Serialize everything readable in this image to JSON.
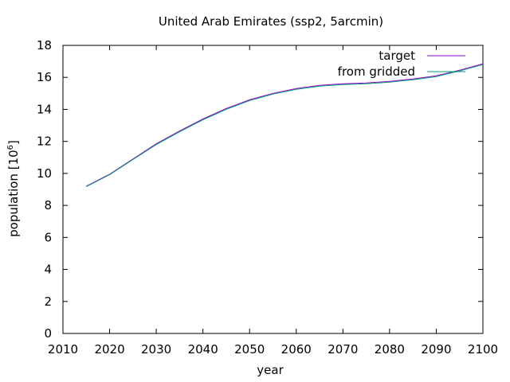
{
  "chart_data": {
    "type": "line",
    "title": "United Arab Emirates (ssp2, 5arcmin)",
    "xlabel": "year",
    "ylabel": "population [10",
    "ylabel_exp": "6",
    "ylabel_suffix": "]",
    "xlim": [
      2010,
      2100
    ],
    "ylim": [
      0,
      18
    ],
    "xticks": [
      2010,
      2020,
      2030,
      2040,
      2050,
      2060,
      2070,
      2080,
      2090,
      2100
    ],
    "yticks": [
      0,
      2,
      4,
      6,
      8,
      10,
      12,
      14,
      16,
      18
    ],
    "grid": false,
    "legend_position": "top-right",
    "series": [
      {
        "name": "target",
        "color": "#9400d3",
        "x": [
          2015,
          2020,
          2025,
          2030,
          2035,
          2040,
          2045,
          2050,
          2055,
          2060,
          2065,
          2070,
          2075,
          2080,
          2085,
          2090,
          2095,
          2100
        ],
        "y": [
          9.2,
          9.95,
          10.9,
          11.85,
          12.65,
          13.4,
          14.05,
          14.6,
          15.0,
          15.3,
          15.5,
          15.6,
          15.65,
          15.75,
          15.9,
          16.1,
          16.45,
          16.85
        ]
      },
      {
        "name": "from gridded",
        "color": "#009e73",
        "x": [
          2015,
          2020,
          2025,
          2030,
          2035,
          2040,
          2045,
          2050,
          2055,
          2060,
          2065,
          2070,
          2075,
          2080,
          2085,
          2090,
          2095,
          2100
        ],
        "y": [
          9.18,
          9.92,
          10.87,
          11.8,
          12.6,
          13.35,
          14.0,
          14.55,
          14.95,
          15.25,
          15.45,
          15.55,
          15.6,
          15.7,
          15.85,
          16.05,
          16.4,
          16.8
        ]
      }
    ]
  }
}
